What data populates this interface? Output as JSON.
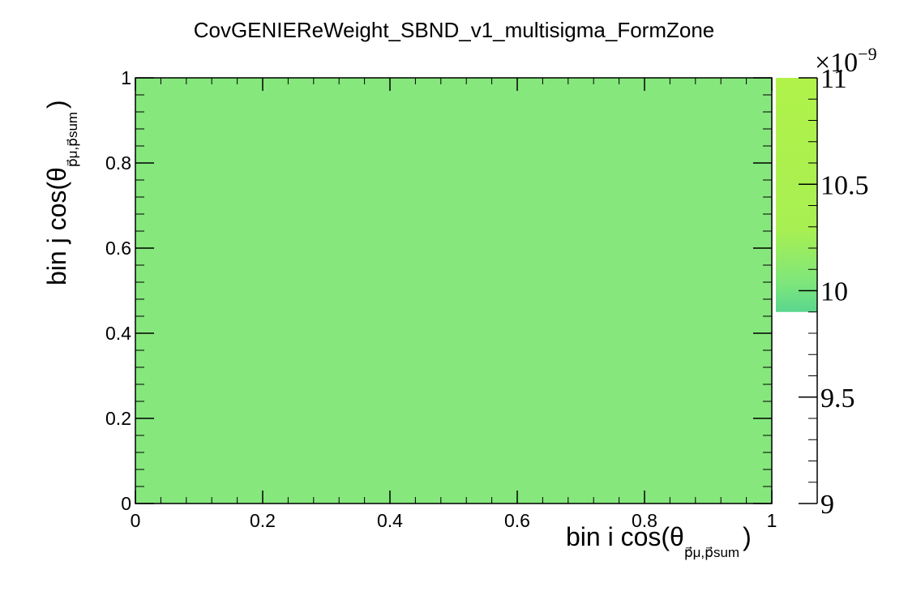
{
  "chart_data": {
    "type": "heatmap",
    "title": "CovGENIEReWeight_SBND_v1_multisigma_FormZone",
    "xlabel": "bin i cos(θ",
    "xlabel_sub": "p⃗μ,p⃗sum",
    "xlabel_close": ")",
    "ylabel": "bin j cos(θ",
    "ylabel_sub": "p⃗μ,p⃗sum",
    "ylabel_close": ")",
    "xlim": [
      0,
      1
    ],
    "ylim": [
      0,
      1
    ],
    "x_ticks": [
      "0",
      "0.2",
      "0.4",
      "0.6",
      "0.8",
      "1"
    ],
    "y_ticks": [
      "0",
      "0.2",
      "0.4",
      "0.6",
      "0.8",
      "1"
    ],
    "cells": [
      {
        "x_range": [
          0,
          1
        ],
        "y_range": [
          0,
          1
        ],
        "value": 9.95e-09
      }
    ],
    "colorbar": {
      "range": [
        9.0,
        11.0
      ],
      "exponent_label": "×10",
      "exponent_power": "−9",
      "tick_labels": [
        "9",
        "9.5",
        "10",
        "10.5",
        "11"
      ],
      "filled_from": 9.9,
      "colors": [
        "#5ad68e",
        "#7de67c",
        "#a8ef52",
        "#b0f24a"
      ]
    },
    "cell_color": "#85e77c"
  }
}
